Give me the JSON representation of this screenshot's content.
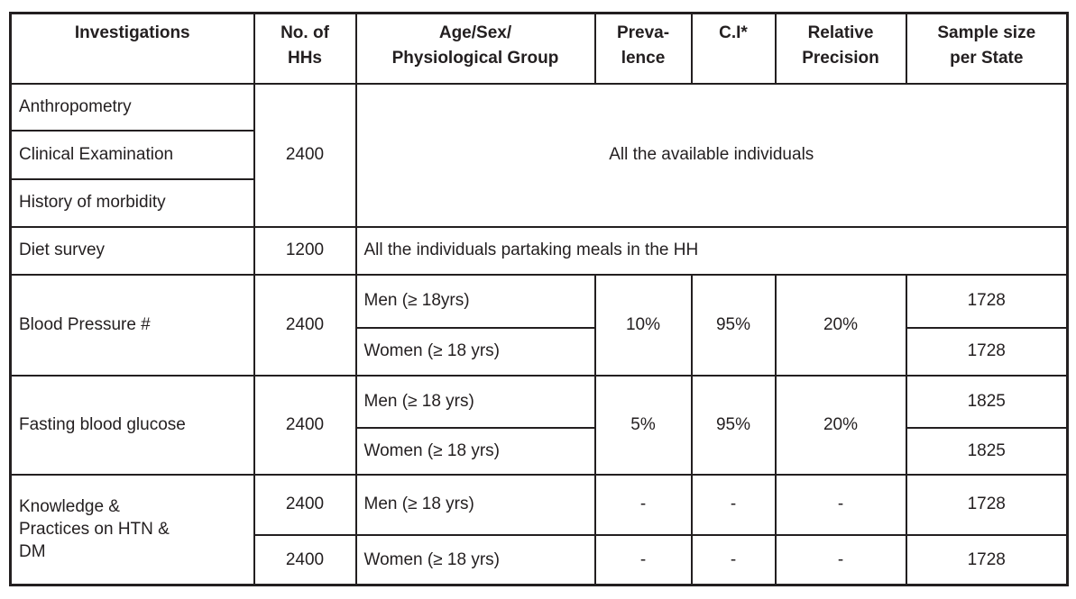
{
  "table": {
    "header": {
      "investigations": "Investigations",
      "no_of_hhs": "No. of\nHHs",
      "age_sex_group": "Age/Sex/\nPhysiological Group",
      "prevalence": "Preva-\nlence",
      "ci": "C.I*",
      "relative_precision": "Relative\nPrecision",
      "sample_size_per_state": "Sample size\nper State"
    },
    "sections": {
      "all_individuals_group": {
        "investigations": [
          "Anthropometry",
          "Clinical Examination",
          "History of morbidity"
        ],
        "no_of_hhs": "2400",
        "group_note": "All the available individuals"
      },
      "diet_survey": {
        "investigation": "Diet survey",
        "no_of_hhs": "1200",
        "group_note": "All the individuals partaking meals in the HH"
      },
      "blood_pressure": {
        "investigation": "Blood Pressure #",
        "no_of_hhs": "2400",
        "prevalence": "10%",
        "ci": "95%",
        "relative_precision": "20%",
        "men": {
          "group": "Men (≥ 18yrs)",
          "sample_size": "1728"
        },
        "women": {
          "group": "Women (≥ 18 yrs)",
          "sample_size": "1728"
        }
      },
      "fasting_blood_glucose": {
        "investigation": "Fasting blood glucose",
        "no_of_hhs": "2400",
        "prevalence": "5%",
        "ci": "95%",
        "relative_precision": "20%",
        "men": {
          "group": "Men (≥ 18 yrs)",
          "sample_size": "1825"
        },
        "women": {
          "group": "Women (≥ 18 yrs)",
          "sample_size": "1825"
        }
      },
      "knowledge_practices": {
        "investigation": "Knowledge & Practices on HTN & DM",
        "men": {
          "no_of_hhs": "2400",
          "group": "Men (≥ 18 yrs)",
          "prevalence": "-",
          "ci": "-",
          "relative_precision": "-",
          "sample_size": "1728"
        },
        "women": {
          "no_of_hhs": "2400",
          "group": "Women (≥ 18 yrs)",
          "prevalence": "-",
          "ci": "-",
          "relative_precision": "-",
          "sample_size": "1728"
        }
      }
    }
  }
}
